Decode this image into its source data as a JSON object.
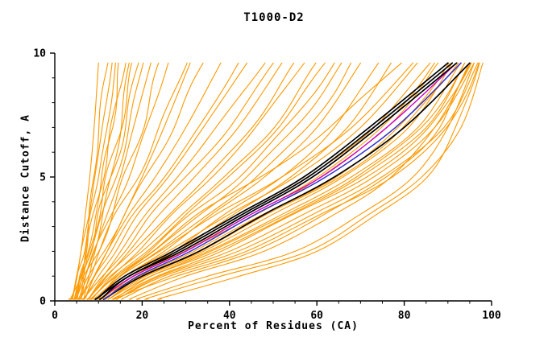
{
  "chart_data": {
    "type": "line",
    "title": "T1000-D2",
    "xlabel": "Percent of Residues (CA)",
    "ylabel": "Distance Cutoff, A",
    "xlim": [
      0,
      100
    ],
    "ylim": [
      0,
      10
    ],
    "x_ticks": [
      0,
      20,
      40,
      60,
      80,
      100
    ],
    "x_minor_step": 5,
    "y_ticks": [
      0,
      5,
      10
    ],
    "y_minor_step": 1,
    "grid": false,
    "legend": "none",
    "colors": {
      "orange": "#ff9900",
      "black": "#000000",
      "blue": "#3333cc",
      "magenta": "#cc00cc"
    },
    "stroke_widths": {
      "orange": 1.1,
      "black": 1.7,
      "blue": 1.5,
      "magenta": 1.4
    },
    "y_levels": [
      0.15,
      1,
      2,
      3.5,
      5,
      7,
      9.6
    ],
    "series": [
      {
        "color": "orange",
        "x": [
          4,
          5,
          6,
          7,
          8,
          9,
          10
        ]
      },
      {
        "color": "orange",
        "x": [
          4,
          5,
          7,
          8,
          10,
          12,
          14
        ]
      },
      {
        "color": "orange",
        "x": [
          5,
          6,
          7,
          9,
          11,
          13,
          16
        ]
      },
      {
        "color": "orange",
        "x": [
          5,
          6,
          8,
          10,
          13,
          16,
          19
        ]
      },
      {
        "color": "orange",
        "x": [
          5,
          7,
          9,
          12,
          15,
          18,
          22
        ]
      },
      {
        "color": "orange",
        "x": [
          6,
          7,
          9,
          13,
          17,
          21,
          26
        ]
      },
      {
        "color": "orange",
        "x": [
          6,
          8,
          10,
          14,
          19,
          24,
          30
        ]
      },
      {
        "color": "orange",
        "x": [
          6,
          8,
          11,
          16,
          21,
          27,
          34
        ]
      },
      {
        "color": "orange",
        "x": [
          7,
          9,
          12,
          17,
          23,
          30,
          38
        ]
      },
      {
        "color": "orange",
        "x": [
          7,
          9,
          13,
          18,
          25,
          33,
          42
        ]
      },
      {
        "color": "orange",
        "x": [
          4,
          6,
          8,
          11,
          14,
          17,
          20
        ]
      },
      {
        "color": "orange",
        "x": [
          5,
          7,
          10,
          13,
          16,
          20,
          24
        ]
      },
      {
        "color": "orange",
        "x": [
          6,
          9,
          12,
          16,
          20,
          25,
          31
        ]
      },
      {
        "color": "orange",
        "x": [
          4,
          5,
          6,
          8,
          9,
          11,
          13
        ]
      },
      {
        "color": "orange",
        "x": [
          5,
          6,
          7,
          8,
          9,
          10,
          12
        ]
      },
      {
        "color": "orange",
        "x": [
          6,
          7,
          8,
          10,
          12,
          15,
          18
        ]
      },
      {
        "color": "orange",
        "x": [
          7,
          10,
          14,
          19,
          26,
          34,
          44
        ]
      },
      {
        "color": "orange",
        "x": [
          8,
          11,
          15,
          21,
          28,
          37,
          48
        ]
      },
      {
        "color": "orange",
        "x": [
          7,
          8,
          9,
          11,
          13,
          15,
          17
        ]
      },
      {
        "color": "orange",
        "x": [
          5,
          6,
          8,
          9,
          11,
          13,
          15
        ]
      },
      {
        "color": "orange",
        "x": [
          8,
          12,
          17,
          24,
          32,
          42,
          52
        ]
      },
      {
        "color": "orange",
        "x": [
          9,
          13,
          19,
          27,
          36,
          46,
          57
        ]
      },
      {
        "color": "orange",
        "x": [
          9,
          14,
          21,
          30,
          40,
          51,
          62
        ]
      },
      {
        "color": "orange",
        "x": [
          10,
          15,
          23,
          33,
          44,
          55,
          66
        ]
      },
      {
        "color": "orange",
        "x": [
          10,
          16,
          25,
          36,
          48,
          60,
          70
        ]
      },
      {
        "color": "orange",
        "x": [
          11,
          17,
          27,
          39,
          52,
          64,
          74
        ]
      },
      {
        "color": "orange",
        "x": [
          8,
          13,
          20,
          29,
          39,
          50,
          60
        ]
      },
      {
        "color": "orange",
        "x": [
          9,
          15,
          24,
          35,
          46,
          58,
          68
        ]
      },
      {
        "color": "orange",
        "x": [
          12,
          18,
          28,
          41,
          54,
          67,
          77
        ]
      },
      {
        "color": "orange",
        "x": [
          7,
          11,
          16,
          22,
          30,
          40,
          50
        ]
      },
      {
        "color": "orange",
        "x": [
          8,
          12,
          18,
          26,
          35,
          45,
          55
        ]
      },
      {
        "color": "orange",
        "x": [
          10,
          14,
          22,
          31,
          42,
          53,
          64
        ]
      },
      {
        "color": "orange",
        "x": [
          10,
          16,
          26,
          40,
          55,
          70,
          83
        ]
      },
      {
        "color": "orange",
        "x": [
          11,
          17,
          28,
          43,
          58,
          73,
          86
        ]
      },
      {
        "color": "orange",
        "x": [
          12,
          18,
          30,
          46,
          61,
          76,
          88
        ]
      },
      {
        "color": "orange",
        "x": [
          12,
          19,
          32,
          48,
          64,
          79,
          90
        ]
      },
      {
        "color": "orange",
        "x": [
          13,
          20,
          34,
          50,
          66,
          81,
          91
        ]
      },
      {
        "color": "orange",
        "x": [
          13,
          21,
          35,
          52,
          68,
          83,
          93
        ]
      },
      {
        "color": "orange",
        "x": [
          14,
          22,
          36,
          53,
          69,
          84,
          94
        ]
      },
      {
        "color": "orange",
        "x": [
          14,
          23,
          38,
          55,
          71,
          86,
          95
        ]
      },
      {
        "color": "orange",
        "x": [
          15,
          24,
          40,
          57,
          73,
          87,
          96
        ]
      },
      {
        "color": "orange",
        "x": [
          15,
          25,
          42,
          59,
          75,
          89,
          97
        ]
      },
      {
        "color": "orange",
        "x": [
          11,
          18,
          30,
          45,
          60,
          75,
          87
        ]
      },
      {
        "color": "orange",
        "x": [
          12,
          20,
          33,
          49,
          65,
          80,
          92
        ]
      },
      {
        "color": "orange",
        "x": [
          10,
          15,
          24,
          37,
          52,
          68,
          82
        ]
      },
      {
        "color": "orange",
        "x": [
          13,
          22,
          37,
          54,
          70,
          85,
          94
        ]
      },
      {
        "color": "orange",
        "x": [
          16,
          26,
          44,
          61,
          77,
          90,
          97
        ]
      },
      {
        "color": "orange",
        "x": [
          9,
          14,
          22,
          33,
          47,
          63,
          79
        ]
      },
      {
        "color": "orange",
        "x": [
          20,
          35,
          55,
          70,
          82,
          90,
          96
        ]
      },
      {
        "color": "orange",
        "x": [
          18,
          30,
          48,
          64,
          77,
          87,
          95
        ]
      },
      {
        "color": "orange",
        "x": [
          25,
          42,
          60,
          74,
          85,
          92,
          97
        ]
      },
      {
        "color": "orange",
        "x": [
          15,
          28,
          45,
          62,
          76,
          88,
          95
        ]
      },
      {
        "color": "orange",
        "x": [
          22,
          38,
          58,
          72,
          84,
          93,
          98
        ]
      },
      {
        "color": "magenta",
        "x": [
          11,
          18,
          30,
          45,
          61,
          76,
          92
        ]
      },
      {
        "color": "black",
        "x": [
          10,
          16,
          27,
          42,
          57,
          72,
          90
        ]
      },
      {
        "color": "black",
        "x": [
          10,
          17,
          28,
          43,
          58,
          73,
          91
        ]
      },
      {
        "color": "black",
        "x": [
          11,
          17,
          29,
          44,
          59,
          74,
          92
        ]
      },
      {
        "color": "black",
        "x": [
          12,
          20,
          33,
          48,
          64,
          80,
          95
        ]
      },
      {
        "color": "blue",
        "x": [
          12,
          19,
          31,
          46,
          62,
          78,
          93
        ]
      }
    ]
  }
}
